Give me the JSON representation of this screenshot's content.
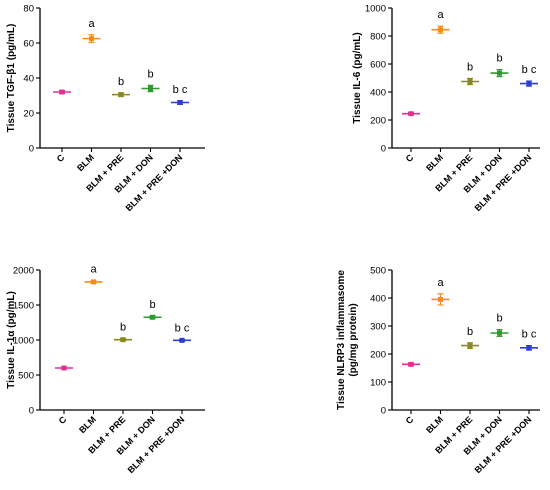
{
  "chart_data": [
    {
      "type": "scatter",
      "title": "",
      "ylabel": "Tissue TGF-β1 (pg/mL)",
      "ylabel_lines": [
        "Tissue TGF-β1 (pg/mL)"
      ],
      "ylim": [
        0,
        80
      ],
      "yticks": [
        0,
        20,
        40,
        60,
        80
      ],
      "categories": [
        "C",
        "BLM",
        "BLM + PRE",
        "BLM + DON",
        "BLM + PRE +DON"
      ],
      "values": [
        32,
        62.5,
        30.5,
        34,
        26
      ],
      "errors": [
        0.8,
        2.2,
        1.0,
        1.8,
        1.0
      ],
      "annotations": [
        "",
        "a",
        "b",
        "b",
        "b c"
      ],
      "colors": [
        "#e0338f",
        "#f28c1a",
        "#8a8a1c",
        "#2e9a2e",
        "#2e3fcf"
      ]
    },
    {
      "type": "scatter",
      "title": "",
      "ylabel": "Tissue IL-6 (pg/mL)",
      "ylabel_lines": [
        "Tissue IL-6 (pg/mL)"
      ],
      "ylim": [
        0,
        1000
      ],
      "yticks": [
        0,
        200,
        400,
        600,
        800,
        1000
      ],
      "categories": [
        "C",
        "BLM",
        "BLM + PRE",
        "BLM + DON",
        "BLM + PRE +DON"
      ],
      "values": [
        245,
        845,
        475,
        535,
        460
      ],
      "errors": [
        8,
        25,
        22,
        25,
        18
      ],
      "annotations": [
        "",
        "a",
        "b",
        "b",
        "b c"
      ],
      "colors": [
        "#e0338f",
        "#f28c1a",
        "#8a8a1c",
        "#2e9a2e",
        "#2e3fcf"
      ]
    },
    {
      "type": "scatter",
      "title": "",
      "ylabel": "Tissue IL-1α (pg/mL)",
      "ylabel_lines": [
        "Tissue IL-1α (pg/mL)"
      ],
      "ylim": [
        0,
        2000
      ],
      "yticks": [
        0,
        500,
        1000,
        1500,
        2000
      ],
      "categories": [
        "C",
        "BLM",
        "BLM + PRE",
        "BLM + DON",
        "BLM + PRE +DON"
      ],
      "values": [
        600,
        1830,
        1005,
        1325,
        995
      ],
      "errors": [
        15,
        20,
        15,
        20,
        12
      ],
      "annotations": [
        "",
        "a",
        "b",
        "b",
        "b c"
      ],
      "colors": [
        "#e0338f",
        "#f28c1a",
        "#8a8a1c",
        "#2e9a2e",
        "#2e3fcf"
      ]
    },
    {
      "type": "scatter",
      "title": "",
      "ylabel": "Tissue NLRP3 inflammasome (pg/mg protein)",
      "ylabel_lines": [
        "Tissue NLRP3 inflammasome",
        "(pg/mg protein)"
      ],
      "ylim": [
        0,
        500
      ],
      "yticks": [
        0,
        100,
        200,
        300,
        400,
        500
      ],
      "categories": [
        "C",
        "BLM",
        "BLM + PRE",
        "BLM + DON",
        "BLM + PRE +DON"
      ],
      "values": [
        163,
        395,
        230,
        275,
        222
      ],
      "errors": [
        5,
        20,
        10,
        12,
        8
      ],
      "annotations": [
        "",
        "a",
        "b",
        "b",
        "b c"
      ],
      "colors": [
        "#e0338f",
        "#f28c1a",
        "#8a8a1c",
        "#2e9a2e",
        "#2e3fcf"
      ]
    }
  ]
}
